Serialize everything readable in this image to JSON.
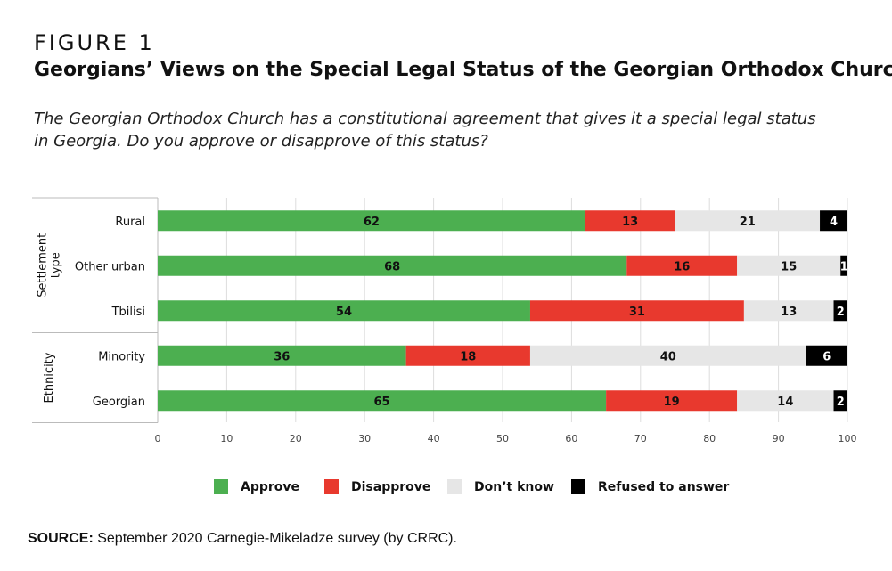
{
  "figure_label": "FIGURE 1",
  "title": "Georgians’ Views on the Special Legal Status of the Georgian Orthodox Church",
  "subtitle": "The Georgian Orthodox Church has a constitutional agreement that gives it a special legal status in Georgia. Do you approve or disapprove of this status?",
  "source": {
    "label": "SOURCE:",
    "text": "September 2020 Carnegie-Mikeladze survey (by CRRC)."
  },
  "colors": {
    "approve": "#4caf50",
    "disapprove": "#e8392e",
    "dont_know": "#e6e6e6",
    "refused": "#000000"
  },
  "chart_data": {
    "type": "bar",
    "orientation": "horizontal",
    "stacked": true,
    "xlim": [
      0,
      100
    ],
    "x_ticks": [
      0,
      10,
      20,
      30,
      40,
      50,
      60,
      70,
      80,
      90,
      100
    ],
    "grid": true,
    "legend_position": "bottom",
    "groups": [
      {
        "label": "Settlement type",
        "categories": [
          "Rural",
          "Other urban",
          "Tbilisi"
        ]
      },
      {
        "label": "Ethnicity",
        "categories": [
          "Minority",
          "Georgian"
        ]
      }
    ],
    "categories": [
      "Rural",
      "Other urban",
      "Tbilisi",
      "Minority",
      "Georgian"
    ],
    "series": [
      {
        "name": "Approve",
        "color": "#4caf50",
        "values": [
          62,
          68,
          54,
          36,
          65
        ]
      },
      {
        "name": "Disapprove",
        "color": "#e8392e",
        "values": [
          13,
          16,
          31,
          18,
          19
        ]
      },
      {
        "name": "Don’t know",
        "color": "#e6e6e6",
        "values": [
          21,
          15,
          13,
          40,
          14
        ]
      },
      {
        "name": "Refused to answer",
        "color": "#000000",
        "values": [
          4,
          1,
          2,
          6,
          2
        ]
      }
    ]
  }
}
